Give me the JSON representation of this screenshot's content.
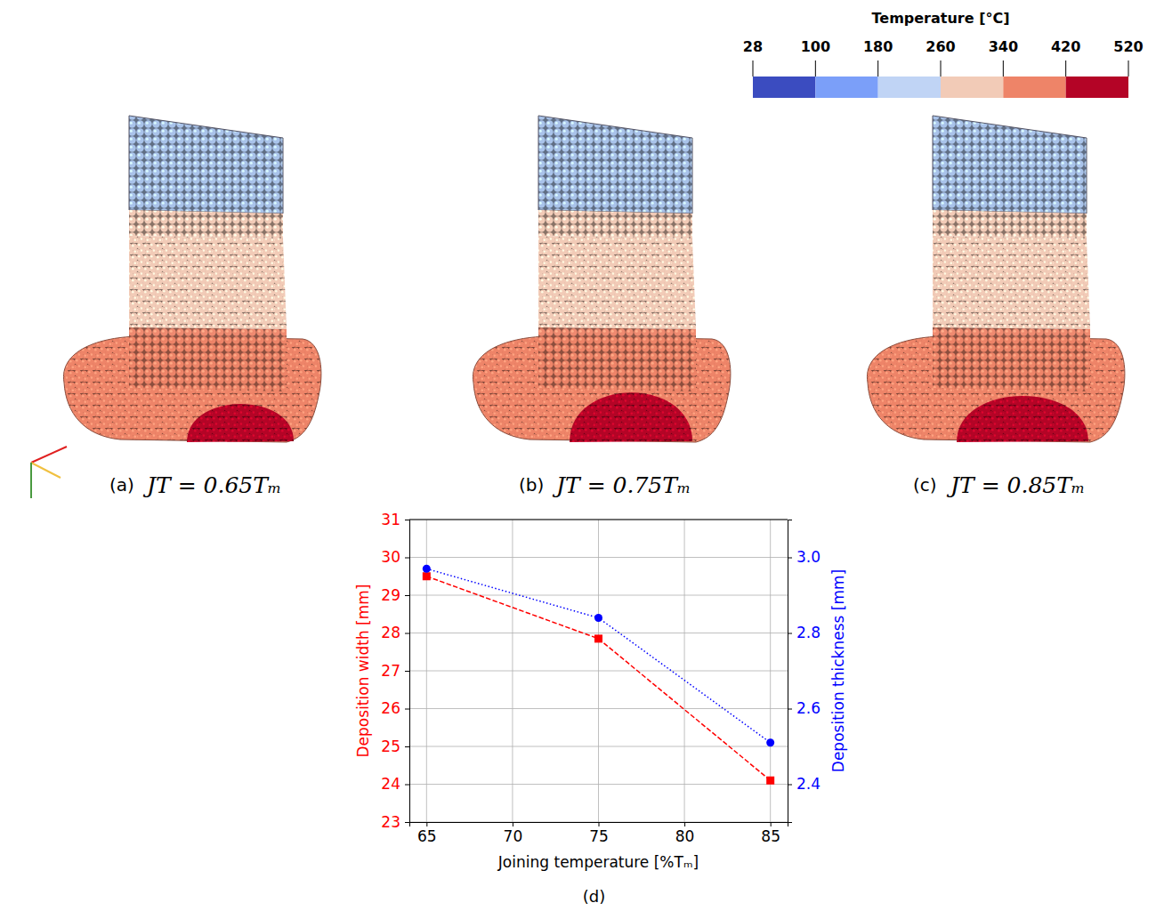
{
  "chart_data": {
    "type": "line",
    "caption": "(d)",
    "x": [
      65,
      75,
      85
    ],
    "xlabel": "Joining temperature [%Tₘ]",
    "xlim": [
      64,
      86
    ],
    "xticks": [
      65,
      70,
      75,
      80,
      85
    ],
    "ylabel": "Deposition width [mm]",
    "ylim": [
      23,
      31
    ],
    "yticks": [
      23,
      24,
      25,
      26,
      27,
      28,
      29,
      30,
      31
    ],
    "y2label": "Deposition thickness [mm]",
    "y2lim": [
      2.3,
      3.1
    ],
    "y2ticks": [
      2.4,
      2.6,
      2.8,
      {
        "value": 3,
        "label": "3.0"
      }
    ],
    "grid": true,
    "series": [
      {
        "color": "#ff0000",
        "marker": "square",
        "line_style": "dashed",
        "values": [
          29.5,
          27.85,
          24.1
        ]
      },
      {
        "color": "#0000ff",
        "marker": "circle",
        "line_style": "dotted",
        "axis": "y2",
        "values": [
          2.97,
          2.84,
          2.51
        ]
      }
    ]
  },
  "figure": {
    "colorbar": {
      "title": "Temperature [°C]",
      "ticks": [
        28,
        100,
        180,
        260,
        340,
        420,
        520
      ],
      "colors": [
        "#3b4cc0",
        "#7b9ff9",
        "#c0d4f5",
        "#f2cbb7",
        "#ee8468",
        "#b40426"
      ]
    },
    "panels": [
      {
        "letter": "(a)",
        "math": "JT = 0.65Tₘ"
      },
      {
        "letter": "(b)",
        "math": "JT = 0.75Tₘ"
      },
      {
        "letter": "(c)",
        "math": "JT = 0.85Tₘ"
      }
    ]
  }
}
